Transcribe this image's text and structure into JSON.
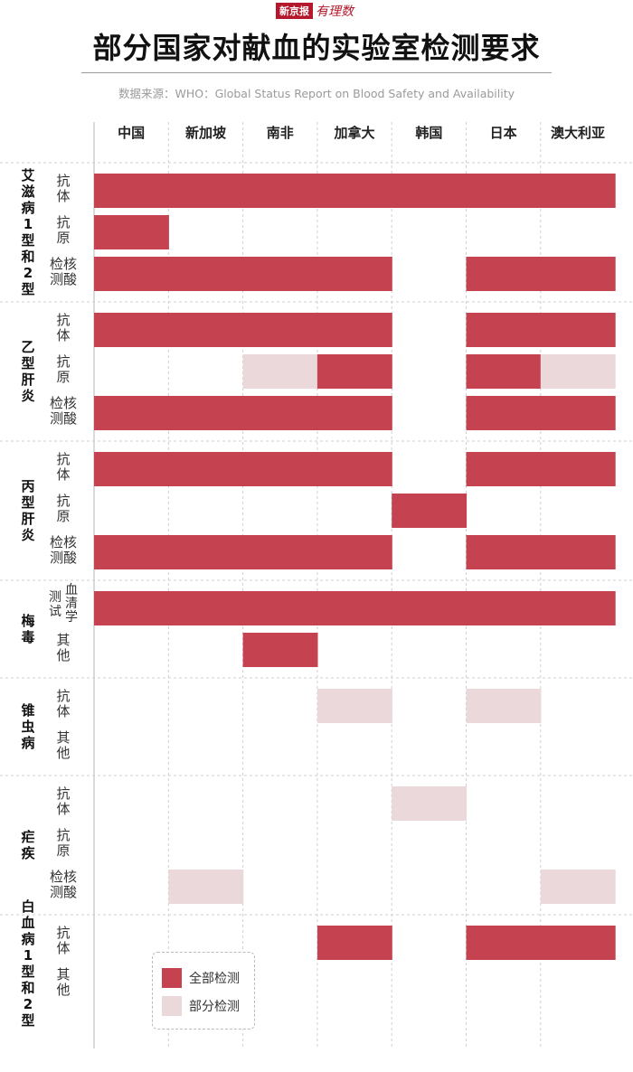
{
  "logo": {
    "name": "新京报",
    "brand": "有理数"
  },
  "title": "部分国家对献血的实验室检测要求",
  "source": "数据来源：WHO：Global Status Report on Blood Safety and Availability",
  "legend": {
    "full": "全部检测",
    "partial": "部分检测"
  },
  "colors": {
    "full": "#c54350",
    "partial": "#ead8da",
    "grid": "#cfcfcf"
  },
  "chart_data": {
    "type": "heatmap",
    "countries": [
      "中国",
      "新加坡",
      "南非",
      "加拿大",
      "韩国",
      "日本",
      "澳大利亚"
    ],
    "levels": {
      "2": "全部检测",
      "1": "部分检测",
      "0": "none"
    },
    "groups": [
      {
        "name": "艾滋病1型和2型",
        "rows": [
          {
            "label": "抗体",
            "values": [
              2,
              2,
              2,
              2,
              2,
              2,
              2
            ]
          },
          {
            "label": "抗原",
            "values": [
              2,
              0,
              0,
              0,
              0,
              0,
              0
            ]
          },
          {
            "label": "检核测酸",
            "values": [
              2,
              2,
              2,
              2,
              0,
              2,
              2
            ]
          }
        ]
      },
      {
        "name": "乙型肝炎",
        "rows": [
          {
            "label": "抗体",
            "values": [
              2,
              2,
              2,
              2,
              0,
              2,
              2
            ]
          },
          {
            "label": "抗原",
            "values": [
              0,
              0,
              1,
              2,
              0,
              2,
              1
            ]
          },
          {
            "label": "检核测酸",
            "values": [
              2,
              2,
              2,
              2,
              0,
              2,
              2
            ]
          }
        ]
      },
      {
        "name": "丙型肝炎",
        "rows": [
          {
            "label": "抗体",
            "values": [
              2,
              2,
              2,
              2,
              0,
              2,
              2
            ]
          },
          {
            "label": "抗原",
            "values": [
              0,
              0,
              0,
              0,
              2,
              0,
              0
            ]
          },
          {
            "label": "检核测酸",
            "values": [
              2,
              2,
              2,
              2,
              0,
              2,
              2
            ]
          }
        ]
      },
      {
        "name": "梅毒",
        "rows": [
          {
            "label": "血清学测试",
            "values": [
              2,
              2,
              2,
              2,
              2,
              2,
              2
            ]
          },
          {
            "label": "其他",
            "values": [
              0,
              0,
              2,
              0,
              0,
              0,
              0
            ]
          }
        ]
      },
      {
        "name": "锥虫病",
        "rows": [
          {
            "label": "抗体",
            "values": [
              0,
              0,
              0,
              1,
              0,
              1,
              0
            ]
          },
          {
            "label": "其他",
            "values": [
              0,
              0,
              0,
              0,
              0,
              0,
              0
            ]
          }
        ]
      },
      {
        "name": "疟疾",
        "rows": [
          {
            "label": "抗体",
            "values": [
              0,
              0,
              0,
              0,
              1,
              0,
              0
            ]
          },
          {
            "label": "抗原",
            "values": [
              0,
              0,
              0,
              0,
              0,
              0,
              0
            ]
          },
          {
            "label": "检核测酸",
            "values": [
              0,
              1,
              0,
              0,
              0,
              0,
              1
            ]
          }
        ]
      },
      {
        "name": "白血病1型和2型",
        "rows": [
          {
            "label": "抗体",
            "values": [
              0,
              0,
              0,
              2,
              0,
              2,
              2
            ]
          },
          {
            "label": "其他",
            "values": [
              0,
              0,
              0,
              0,
              0,
              0,
              0
            ]
          }
        ]
      }
    ]
  }
}
